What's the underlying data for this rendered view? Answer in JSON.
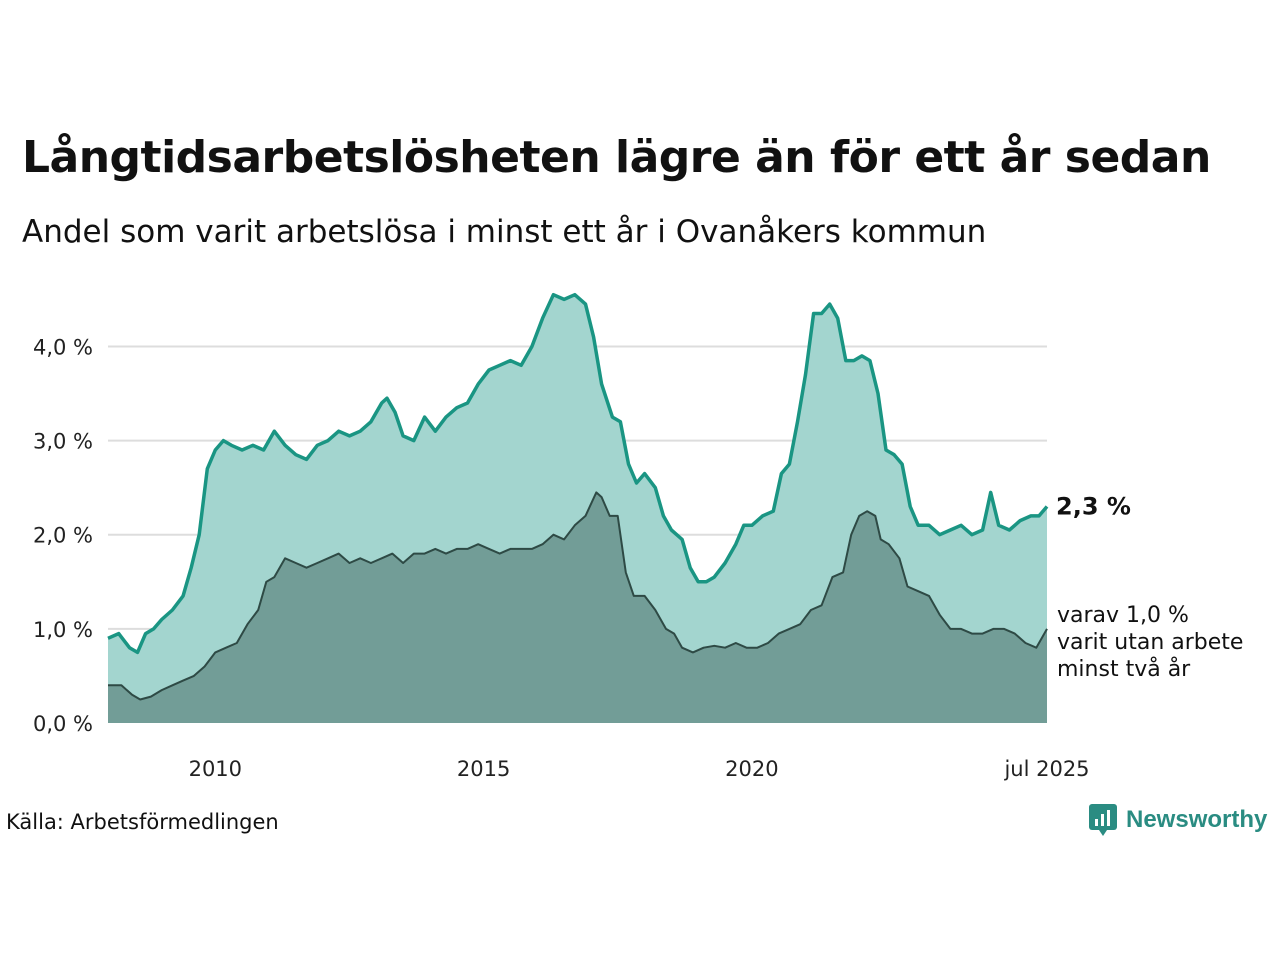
{
  "title": "Långtidsarbetslösheten lägre än för ett år sedan",
  "subtitle": "Andel som varit arbetslösa i minst ett år i Ovanåkers kommun",
  "source": "Källa: Arbetsförmedlingen",
  "brand": "Newsworthy",
  "colors": {
    "series1_line": "#1a9583",
    "series1_fill": "#a3d5cf",
    "series2_line": "#2e4a45",
    "series2_fill": "#729d97",
    "grid": "#dddddd",
    "brand": "#2a8c82"
  },
  "chart_data": {
    "type": "area",
    "x_axis": {
      "min": 2008.0,
      "max": 2025.5,
      "tick_values": [
        2010,
        2015,
        2020,
        2025.5
      ],
      "tick_labels": [
        "2010",
        "2015",
        "2020",
        "jul 2025"
      ]
    },
    "y_axis": {
      "min": 0,
      "max": 4.6,
      "tick_values": [
        0,
        1,
        2,
        3,
        4
      ],
      "tick_labels": [
        "0,0 %",
        "1,0 %",
        "2,0 %",
        "3,0 %",
        "4,0 %"
      ]
    },
    "grid": true,
    "series": [
      {
        "end_label": "2,3 %",
        "points": [
          [
            2008.0,
            0.9
          ],
          [
            2008.2,
            0.95
          ],
          [
            2008.4,
            0.8
          ],
          [
            2008.55,
            0.75
          ],
          [
            2008.7,
            0.95
          ],
          [
            2008.85,
            1.0
          ],
          [
            2009.0,
            1.1
          ],
          [
            2009.2,
            1.2
          ],
          [
            2009.4,
            1.35
          ],
          [
            2009.55,
            1.65
          ],
          [
            2009.7,
            2.0
          ],
          [
            2009.85,
            2.7
          ],
          [
            2010.0,
            2.9
          ],
          [
            2010.15,
            3.0
          ],
          [
            2010.3,
            2.95
          ],
          [
            2010.5,
            2.9
          ],
          [
            2010.7,
            2.95
          ],
          [
            2010.9,
            2.9
          ],
          [
            2011.1,
            3.1
          ],
          [
            2011.3,
            2.95
          ],
          [
            2011.5,
            2.85
          ],
          [
            2011.7,
            2.8
          ],
          [
            2011.9,
            2.95
          ],
          [
            2012.1,
            3.0
          ],
          [
            2012.3,
            3.1
          ],
          [
            2012.5,
            3.05
          ],
          [
            2012.7,
            3.1
          ],
          [
            2012.9,
            3.2
          ],
          [
            2013.1,
            3.4
          ],
          [
            2013.2,
            3.45
          ],
          [
            2013.35,
            3.3
          ],
          [
            2013.5,
            3.05
          ],
          [
            2013.7,
            3.0
          ],
          [
            2013.9,
            3.25
          ],
          [
            2014.1,
            3.1
          ],
          [
            2014.3,
            3.25
          ],
          [
            2014.5,
            3.35
          ],
          [
            2014.7,
            3.4
          ],
          [
            2014.9,
            3.6
          ],
          [
            2015.1,
            3.75
          ],
          [
            2015.3,
            3.8
          ],
          [
            2015.5,
            3.85
          ],
          [
            2015.7,
            3.8
          ],
          [
            2015.9,
            4.0
          ],
          [
            2016.1,
            4.3
          ],
          [
            2016.3,
            4.55
          ],
          [
            2016.5,
            4.5
          ],
          [
            2016.7,
            4.55
          ],
          [
            2016.9,
            4.45
          ],
          [
            2017.05,
            4.1
          ],
          [
            2017.2,
            3.6
          ],
          [
            2017.4,
            3.25
          ],
          [
            2017.55,
            3.2
          ],
          [
            2017.7,
            2.75
          ],
          [
            2017.85,
            2.55
          ],
          [
            2018.0,
            2.65
          ],
          [
            2018.2,
            2.5
          ],
          [
            2018.35,
            2.2
          ],
          [
            2018.5,
            2.05
          ],
          [
            2018.7,
            1.95
          ],
          [
            2018.85,
            1.65
          ],
          [
            2019.0,
            1.5
          ],
          [
            2019.15,
            1.5
          ],
          [
            2019.3,
            1.55
          ],
          [
            2019.5,
            1.7
          ],
          [
            2019.7,
            1.9
          ],
          [
            2019.85,
            2.1
          ],
          [
            2020.0,
            2.1
          ],
          [
            2020.2,
            2.2
          ],
          [
            2020.4,
            2.25
          ],
          [
            2020.55,
            2.65
          ],
          [
            2020.7,
            2.75
          ],
          [
            2020.85,
            3.2
          ],
          [
            2021.0,
            3.7
          ],
          [
            2021.15,
            4.35
          ],
          [
            2021.3,
            4.35
          ],
          [
            2021.45,
            4.45
          ],
          [
            2021.6,
            4.3
          ],
          [
            2021.75,
            3.85
          ],
          [
            2021.9,
            3.85
          ],
          [
            2022.05,
            3.9
          ],
          [
            2022.2,
            3.85
          ],
          [
            2022.35,
            3.5
          ],
          [
            2022.5,
            2.9
          ],
          [
            2022.65,
            2.85
          ],
          [
            2022.8,
            2.75
          ],
          [
            2022.95,
            2.3
          ],
          [
            2023.1,
            2.1
          ],
          [
            2023.3,
            2.1
          ],
          [
            2023.5,
            2.0
          ],
          [
            2023.7,
            2.05
          ],
          [
            2023.9,
            2.1
          ],
          [
            2024.1,
            2.0
          ],
          [
            2024.3,
            2.05
          ],
          [
            2024.45,
            2.45
          ],
          [
            2024.6,
            2.1
          ],
          [
            2024.8,
            2.05
          ],
          [
            2025.0,
            2.15
          ],
          [
            2025.2,
            2.2
          ],
          [
            2025.35,
            2.2
          ],
          [
            2025.5,
            2.3
          ]
        ]
      },
      {
        "end_label_lines": [
          "varav 1,0 %",
          "varit utan arbete",
          "minst två år"
        ],
        "points": [
          [
            2008.0,
            0.4
          ],
          [
            2008.25,
            0.4
          ],
          [
            2008.45,
            0.3
          ],
          [
            2008.6,
            0.25
          ],
          [
            2008.8,
            0.28
          ],
          [
            2009.0,
            0.35
          ],
          [
            2009.2,
            0.4
          ],
          [
            2009.4,
            0.45
          ],
          [
            2009.6,
            0.5
          ],
          [
            2009.8,
            0.6
          ],
          [
            2010.0,
            0.75
          ],
          [
            2010.2,
            0.8
          ],
          [
            2010.4,
            0.85
          ],
          [
            2010.6,
            1.05
          ],
          [
            2010.8,
            1.2
          ],
          [
            2010.95,
            1.5
          ],
          [
            2011.1,
            1.55
          ],
          [
            2011.3,
            1.75
          ],
          [
            2011.5,
            1.7
          ],
          [
            2011.7,
            1.65
          ],
          [
            2011.9,
            1.7
          ],
          [
            2012.1,
            1.75
          ],
          [
            2012.3,
            1.8
          ],
          [
            2012.5,
            1.7
          ],
          [
            2012.7,
            1.75
          ],
          [
            2012.9,
            1.7
          ],
          [
            2013.1,
            1.75
          ],
          [
            2013.3,
            1.8
          ],
          [
            2013.5,
            1.7
          ],
          [
            2013.7,
            1.8
          ],
          [
            2013.9,
            1.8
          ],
          [
            2014.1,
            1.85
          ],
          [
            2014.3,
            1.8
          ],
          [
            2014.5,
            1.85
          ],
          [
            2014.7,
            1.85
          ],
          [
            2014.9,
            1.9
          ],
          [
            2015.1,
            1.85
          ],
          [
            2015.3,
            1.8
          ],
          [
            2015.5,
            1.85
          ],
          [
            2015.7,
            1.85
          ],
          [
            2015.9,
            1.85
          ],
          [
            2016.1,
            1.9
          ],
          [
            2016.3,
            2.0
          ],
          [
            2016.5,
            1.95
          ],
          [
            2016.7,
            2.1
          ],
          [
            2016.9,
            2.2
          ],
          [
            2017.1,
            2.45
          ],
          [
            2017.2,
            2.4
          ],
          [
            2017.35,
            2.2
          ],
          [
            2017.5,
            2.2
          ],
          [
            2017.65,
            1.6
          ],
          [
            2017.8,
            1.35
          ],
          [
            2018.0,
            1.35
          ],
          [
            2018.2,
            1.2
          ],
          [
            2018.4,
            1.0
          ],
          [
            2018.55,
            0.95
          ],
          [
            2018.7,
            0.8
          ],
          [
            2018.9,
            0.75
          ],
          [
            2019.1,
            0.8
          ],
          [
            2019.3,
            0.82
          ],
          [
            2019.5,
            0.8
          ],
          [
            2019.7,
            0.85
          ],
          [
            2019.9,
            0.8
          ],
          [
            2020.1,
            0.8
          ],
          [
            2020.3,
            0.85
          ],
          [
            2020.5,
            0.95
          ],
          [
            2020.7,
            1.0
          ],
          [
            2020.9,
            1.05
          ],
          [
            2021.1,
            1.2
          ],
          [
            2021.3,
            1.25
          ],
          [
            2021.5,
            1.55
          ],
          [
            2021.7,
            1.6
          ],
          [
            2021.85,
            2.0
          ],
          [
            2022.0,
            2.2
          ],
          [
            2022.15,
            2.25
          ],
          [
            2022.3,
            2.2
          ],
          [
            2022.4,
            1.95
          ],
          [
            2022.55,
            1.9
          ],
          [
            2022.75,
            1.75
          ],
          [
            2022.9,
            1.45
          ],
          [
            2023.1,
            1.4
          ],
          [
            2023.3,
            1.35
          ],
          [
            2023.5,
            1.15
          ],
          [
            2023.7,
            1.0
          ],
          [
            2023.9,
            1.0
          ],
          [
            2024.1,
            0.95
          ],
          [
            2024.3,
            0.95
          ],
          [
            2024.5,
            1.0
          ],
          [
            2024.7,
            1.0
          ],
          [
            2024.9,
            0.95
          ],
          [
            2025.1,
            0.85
          ],
          [
            2025.3,
            0.8
          ],
          [
            2025.5,
            1.0
          ]
        ]
      }
    ]
  }
}
